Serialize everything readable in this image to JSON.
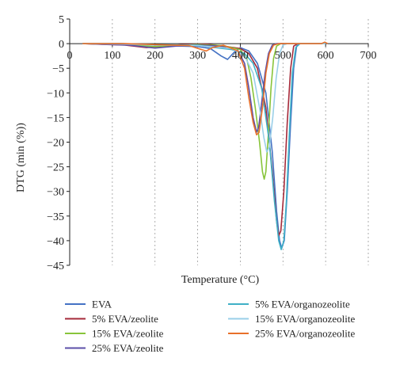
{
  "chart_data": {
    "type": "line",
    "title": "",
    "xlabel": "Temperature (°C)",
    "ylabel": "DTG (min (%))",
    "xlim": [
      0,
      700
    ],
    "ylim": [
      -45,
      5
    ],
    "x_ticks": [
      0,
      100,
      200,
      300,
      400,
      500,
      600,
      700
    ],
    "y_ticks": [
      5,
      0,
      -5,
      -10,
      -15,
      -20,
      -25,
      -30,
      -35,
      -40,
      -45
    ],
    "grid": "vertical dashed",
    "legend_position": "bottom",
    "series": [
      {
        "name": "EVA",
        "color": "#4472C4",
        "points": [
          [
            30,
            0
          ],
          [
            120,
            0
          ],
          [
            200,
            -0.3
          ],
          [
            260,
            -0.5
          ],
          [
            300,
            -0.6
          ],
          [
            330,
            -1.0
          ],
          [
            355,
            -2.5
          ],
          [
            370,
            -3.2
          ],
          [
            385,
            -1.8
          ],
          [
            400,
            -0.8
          ],
          [
            420,
            -1.5
          ],
          [
            440,
            -4
          ],
          [
            460,
            -10
          ],
          [
            475,
            -22
          ],
          [
            485,
            -34
          ],
          [
            492,
            -40
          ],
          [
            497,
            -41.5
          ],
          [
            503,
            -40
          ],
          [
            510,
            -30
          ],
          [
            518,
            -16
          ],
          [
            525,
            -5
          ],
          [
            532,
            -0.5
          ],
          [
            540,
            0
          ],
          [
            600,
            0
          ]
        ]
      },
      {
        "name": "5% EVA/zeolite",
        "color": "#A52A3A",
        "points": [
          [
            30,
            0
          ],
          [
            130,
            -0.3
          ],
          [
            180,
            -0.8
          ],
          [
            220,
            -0.6
          ],
          [
            260,
            -0.2
          ],
          [
            320,
            -0.1
          ],
          [
            360,
            -0.5
          ],
          [
            400,
            -1.0
          ],
          [
            420,
            -2
          ],
          [
            440,
            -5
          ],
          [
            460,
            -13
          ],
          [
            475,
            -26
          ],
          [
            485,
            -36
          ],
          [
            490,
            -39
          ],
          [
            495,
            -38
          ],
          [
            502,
            -30
          ],
          [
            510,
            -16
          ],
          [
            518,
            -5
          ],
          [
            525,
            -0.5
          ],
          [
            535,
            0
          ],
          [
            600,
            0
          ]
        ]
      },
      {
        "name": "15% EVA/zeolite",
        "color": "#88C43A",
        "points": [
          [
            30,
            0
          ],
          [
            130,
            -0.2
          ],
          [
            200,
            -0.6
          ],
          [
            240,
            -0.4
          ],
          [
            300,
            -0.2
          ],
          [
            360,
            -0.4
          ],
          [
            400,
            -1.2
          ],
          [
            415,
            -3
          ],
          [
            425,
            -7
          ],
          [
            435,
            -13
          ],
          [
            445,
            -20
          ],
          [
            452,
            -26
          ],
          [
            456,
            -27.5
          ],
          [
            460,
            -26
          ],
          [
            466,
            -18
          ],
          [
            472,
            -9
          ],
          [
            478,
            -3
          ],
          [
            485,
            -0.5
          ],
          [
            495,
            0
          ],
          [
            600,
            0
          ]
        ]
      },
      {
        "name": "25% EVA/zeolite",
        "color": "#5B4FA8",
        "points": [
          [
            30,
            0
          ],
          [
            140,
            -0.3
          ],
          [
            200,
            -0.9
          ],
          [
            250,
            -0.5
          ],
          [
            300,
            -0.3
          ],
          [
            350,
            -0.5
          ],
          [
            395,
            -1.5
          ],
          [
            410,
            -4
          ],
          [
            420,
            -9
          ],
          [
            430,
            -15
          ],
          [
            438,
            -18
          ],
          [
            443,
            -17
          ],
          [
            450,
            -12
          ],
          [
            458,
            -6
          ],
          [
            466,
            -2
          ],
          [
            475,
            -0.3
          ],
          [
            485,
            0
          ],
          [
            600,
            0
          ]
        ]
      },
      {
        "name": "5% EVA/organozeolite",
        "color": "#3FB0C6",
        "points": [
          [
            30,
            0
          ],
          [
            120,
            0
          ],
          [
            200,
            -0.2
          ],
          [
            300,
            -0.3
          ],
          [
            340,
            -0.8
          ],
          [
            380,
            -1.2
          ],
          [
            410,
            -2
          ],
          [
            430,
            -4
          ],
          [
            450,
            -9
          ],
          [
            468,
            -20
          ],
          [
            480,
            -32
          ],
          [
            490,
            -40
          ],
          [
            496,
            -41.8
          ],
          [
            502,
            -40
          ],
          [
            508,
            -32
          ],
          [
            515,
            -18
          ],
          [
            522,
            -6
          ],
          [
            530,
            -0.8
          ],
          [
            540,
            0
          ],
          [
            600,
            0
          ]
        ]
      },
      {
        "name": "15% EVA/organozeolite",
        "color": "#9ACFE8",
        "points": [
          [
            30,
            0
          ],
          [
            130,
            -0.1
          ],
          [
            200,
            -0.3
          ],
          [
            280,
            -0.3
          ],
          [
            330,
            -0.6
          ],
          [
            380,
            -1.0
          ],
          [
            410,
            -2.5
          ],
          [
            430,
            -6
          ],
          [
            445,
            -13
          ],
          [
            455,
            -19
          ],
          [
            462,
            -22
          ],
          [
            468,
            -21
          ],
          [
            476,
            -15
          ],
          [
            484,
            -7
          ],
          [
            492,
            -2
          ],
          [
            500,
            -0.3
          ],
          [
            510,
            0
          ],
          [
            600,
            0
          ]
        ]
      },
      {
        "name": "25% EVA/organozeolite",
        "color": "#E8702A",
        "points": [
          [
            30,
            0
          ],
          [
            130,
            0
          ],
          [
            200,
            -0.2
          ],
          [
            280,
            -0.4
          ],
          [
            320,
            -1.5
          ],
          [
            335,
            -0.8
          ],
          [
            360,
            -0.3
          ],
          [
            395,
            -1.5
          ],
          [
            410,
            -5
          ],
          [
            420,
            -11
          ],
          [
            430,
            -16
          ],
          [
            438,
            -18.5
          ],
          [
            444,
            -18
          ],
          [
            452,
            -13
          ],
          [
            460,
            -6
          ],
          [
            468,
            -2
          ],
          [
            478,
            -0.3
          ],
          [
            490,
            0
          ],
          [
            590,
            0
          ],
          [
            598,
            0.3
          ],
          [
            605,
            0
          ]
        ]
      }
    ]
  }
}
